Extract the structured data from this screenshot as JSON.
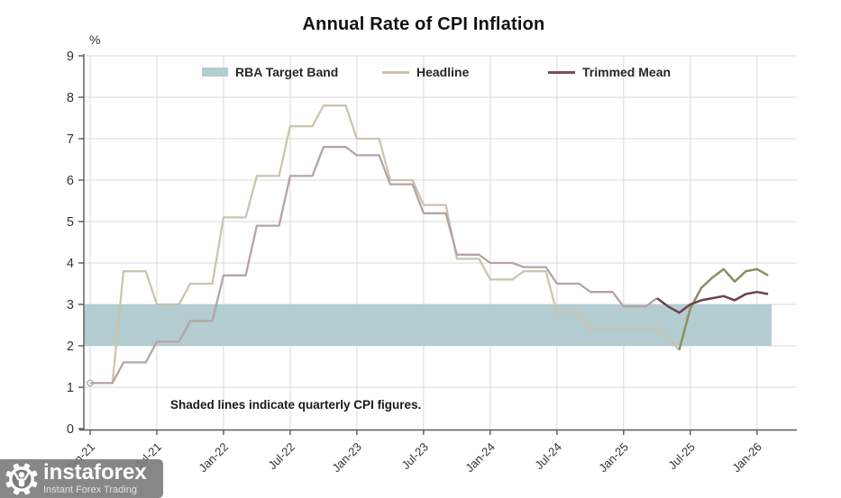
{
  "title": "Annual Rate of CPI Inflation",
  "y_axis_unit": "%",
  "note": "Shaded lines indicate quarterly CPI figures.",
  "legend": [
    {
      "label": "RBA Target Band",
      "type": "band",
      "color": "#b3cdd1"
    },
    {
      "label": "Headline",
      "type": "line",
      "color": "#c9c2ad"
    },
    {
      "label": "Trimmed Mean",
      "type": "line",
      "color": "#7c4f57"
    }
  ],
  "watermark": {
    "name": "instaforex",
    "tagline": "Instant Forex Trading"
  },
  "chart_data": {
    "type": "line",
    "title": "Annual Rate of CPI Inflation",
    "ylabel": "%",
    "ylim": [
      0,
      9
    ],
    "y_ticks": [
      0,
      1,
      2,
      3,
      4,
      5,
      6,
      7,
      8,
      9
    ],
    "x_tick_labels": [
      "Jan-21",
      "Jul-21",
      "Jan-22",
      "Jul-22",
      "Jan-23",
      "Jul-23",
      "Jan-24",
      "Jul-24",
      "Jan-25",
      "Jul-25",
      "Jan-26"
    ],
    "x_tick_every_months": 6,
    "x_start_month": "Jan-21",
    "points_are_monthly": true,
    "grid": true,
    "legend_position": "top",
    "band": {
      "label": "RBA Target Band",
      "from": 2,
      "to": 3,
      "color": "#b3cdd1"
    },
    "note": "Shaded lines indicate quarterly CPI figures.",
    "series": [
      {
        "name": "Headline",
        "quarterly_color": "#cbc4b0",
        "monthly_color": "#8b8e5f",
        "monthly_from_index": 53,
        "values": [
          1.1,
          1.1,
          1.1,
          3.8,
          3.8,
          3.8,
          3.0,
          3.0,
          3.0,
          3.5,
          3.5,
          3.5,
          5.1,
          5.1,
          5.1,
          6.1,
          6.1,
          6.1,
          7.3,
          7.3,
          7.3,
          7.8,
          7.8,
          7.8,
          7.0,
          7.0,
          7.0,
          6.0,
          6.0,
          6.0,
          5.4,
          5.4,
          5.4,
          4.1,
          4.1,
          4.1,
          3.6,
          3.6,
          3.6,
          3.8,
          3.8,
          3.8,
          2.8,
          2.8,
          2.8,
          2.4,
          2.4,
          2.4,
          2.4,
          2.4,
          2.4,
          2.4,
          2.2,
          1.9,
          2.9,
          3.4,
          3.65,
          3.85,
          3.55,
          3.8,
          3.85,
          3.7
        ]
      },
      {
        "name": "Trimmed Mean",
        "quarterly_color": "#b5a3a5",
        "monthly_color": "#6d4149",
        "monthly_from_index": 51,
        "values": [
          1.1,
          1.1,
          1.1,
          1.6,
          1.6,
          1.6,
          2.1,
          2.1,
          2.1,
          2.6,
          2.6,
          2.6,
          3.7,
          3.7,
          3.7,
          4.9,
          4.9,
          4.9,
          6.1,
          6.1,
          6.1,
          6.8,
          6.8,
          6.8,
          6.6,
          6.6,
          6.6,
          5.9,
          5.9,
          5.9,
          5.2,
          5.2,
          5.2,
          4.2,
          4.2,
          4.2,
          4.0,
          4.0,
          4.0,
          3.9,
          3.9,
          3.9,
          3.5,
          3.5,
          3.5,
          3.3,
          3.3,
          3.3,
          2.95,
          2.95,
          2.95,
          3.15,
          2.95,
          2.8,
          3.0,
          3.1,
          3.15,
          3.2,
          3.1,
          3.25,
          3.3,
          3.25
        ]
      }
    ]
  }
}
